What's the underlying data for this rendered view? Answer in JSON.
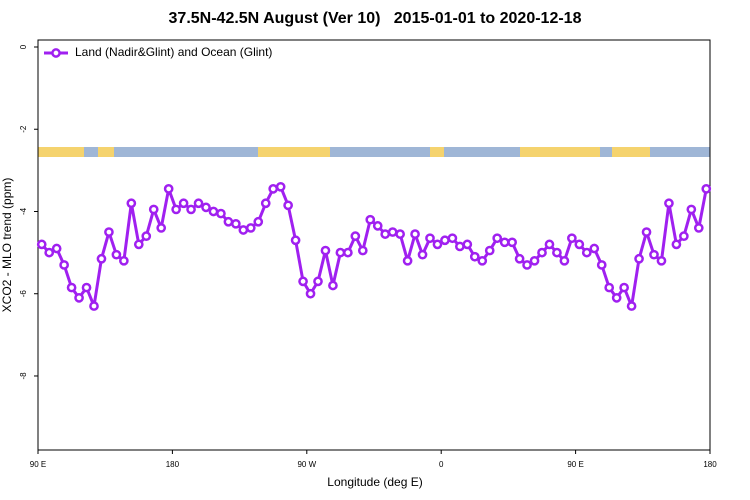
{
  "chart_data": {
    "type": "line",
    "title": "37.5N-42.5N August (Ver 10)   2015-01-01 to 2020-12-18",
    "x_label": "Longitude (deg E)",
    "y_label": "XCO2 - MLO trend (ppm)",
    "x": [
      92.5,
      97.5,
      102.5,
      107.5,
      112.5,
      117.5,
      122.5,
      127.5,
      132.5,
      137.5,
      142.5,
      147.5,
      152.5,
      157.5,
      162.5,
      167.5,
      172.5,
      177.5,
      182.5,
      187.5,
      192.5,
      197.5,
      202.5,
      207.5,
      212.5,
      217.5,
      222.5,
      227.5,
      232.5,
      237.5,
      242.5,
      247.5,
      252.5,
      257.5,
      262.5,
      267.5,
      272.5,
      277.5,
      282.5,
      287.5,
      292.5,
      297.5,
      302.5,
      307.5,
      312.5,
      317.5,
      322.5,
      327.5,
      332.5,
      337.5,
      342.5,
      347.5,
      352.5,
      357.5,
      362.5,
      367.5,
      372.5,
      377.5,
      382.5,
      387.5,
      392.5,
      397.5,
      402.5,
      407.5,
      412.5,
      417.5,
      422.5,
      427.5,
      432.5,
      437.5,
      442.5,
      447.5,
      452.5,
      457.5,
      462.5,
      467.5,
      472.5,
      477.5,
      482.5,
      487.5,
      492.5,
      497.5,
      502.5,
      507.5,
      512.5,
      517.5,
      522.5,
      527.5,
      532.5,
      537.5
    ],
    "series": [
      {
        "name": "Land (Nadir&Glint) and Ocean (Glint)",
        "color": "#a020f0",
        "values": [
          -4.8,
          -5.0,
          -4.9,
          -5.3,
          -5.85,
          -6.1,
          -5.85,
          -6.3,
          -5.15,
          -4.5,
          -5.05,
          -5.2,
          -3.8,
          -4.8,
          -4.6,
          -3.95,
          -4.4,
          -3.45,
          -3.95,
          -3.8,
          -3.95,
          -3.8,
          -3.9,
          -4.0,
          -4.05,
          -4.25,
          -4.3,
          -4.45,
          -4.4,
          -4.25,
          -3.8,
          -3.45,
          -3.4,
          -3.85,
          -4.7,
          -5.7,
          -6.0,
          -5.7,
          -4.95,
          -5.8,
          -5.0,
          -5.0,
          -4.6,
          -4.95,
          -4.2,
          -4.35,
          -4.55,
          -4.5,
          -4.55,
          -5.2,
          -4.55,
          -5.05,
          -4.65,
          -4.8,
          -4.7,
          -4.65,
          -4.85,
          -4.8,
          -5.1,
          -5.2,
          -4.95,
          -4.65,
          -4.75,
          -4.75,
          -5.15,
          -5.3,
          -5.2,
          -5.0,
          -4.8,
          -5.0,
          -5.2,
          -4.65,
          -4.8,
          -5.0,
          -4.9,
          -5.3,
          -5.85,
          -6.1,
          -5.85,
          -6.3,
          -5.15,
          -4.5,
          -5.05,
          -5.2,
          -3.8,
          -4.8,
          -4.6,
          -3.95,
          -4.4,
          -3.45
        ]
      }
    ],
    "xlim": [
      90,
      540
    ],
    "xticks": [
      {
        "value": 90,
        "label": "90 E"
      },
      180,
      {
        "value": 270,
        "label": "90 W"
      },
      {
        "value": 360,
        "label": "0"
      },
      {
        "value": 450,
        "label": "90 E"
      },
      {
        "value": 540,
        "label": "180"
      }
    ],
    "ylim": [
      -9.8,
      0.17
    ],
    "yticks": [
      0,
      -2,
      -4,
      -6,
      -8
    ],
    "legend": "top-left"
  }
}
